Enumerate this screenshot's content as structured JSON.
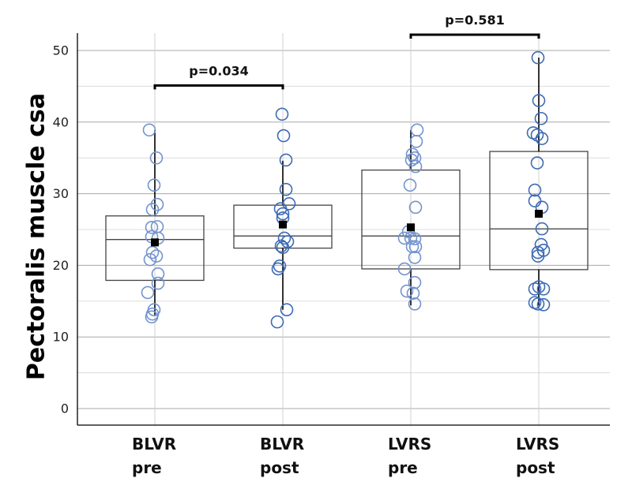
{
  "chart_data": {
    "type": "box",
    "title": "",
    "xlabel": "",
    "ylabel": "Pectoralis muscle csa",
    "ylim": [
      -2.5,
      52.5
    ],
    "yticks": [
      0,
      10,
      20,
      30,
      40,
      50
    ],
    "grid": true,
    "categories": [
      {
        "line1": "BLVR",
        "line2": "pre"
      },
      {
        "line1": "BLVR",
        "line2": "post"
      },
      {
        "line1": "LVRS",
        "line2": "pre"
      },
      {
        "line1": "LVRS",
        "line2": "post"
      }
    ],
    "groups": [
      {
        "name": "BLVR pre",
        "q1": 17.9,
        "median": 23.6,
        "q3": 26.9,
        "mean": 23.2,
        "whisker_low": 13.0,
        "whisker_high": 38.9,
        "point_color": "#7393cf",
        "points": [
          38.9,
          35.0,
          31.2,
          28.5,
          27.8,
          25.3,
          25.4,
          24.0,
          23.8,
          21.8,
          21.3,
          20.8,
          18.8,
          17.5,
          16.2,
          13.8,
          13.2,
          12.8
        ]
      },
      {
        "name": "BLVR post",
        "q1": 22.4,
        "median": 24.1,
        "q3": 28.4,
        "mean": 25.7,
        "whisker_low": 13.8,
        "whisker_high": 34.6,
        "point_color": "#3d6ab5",
        "points": [
          41.1,
          38.1,
          34.7,
          30.6,
          28.6,
          27.9,
          27.2,
          26.6,
          23.8,
          23.3,
          22.5,
          22.7,
          19.9,
          19.5,
          13.8,
          12.1
        ]
      },
      {
        "name": "LVRS pre",
        "q1": 19.5,
        "median": 24.1,
        "q3": 33.3,
        "mean": 25.3,
        "whisker_low": 14.4,
        "whisker_high": 38.9,
        "point_color": "#7393cf",
        "points": [
          38.9,
          37.3,
          35.5,
          35.0,
          34.7,
          33.8,
          31.2,
          28.1,
          24.7,
          23.8,
          23.8,
          23.7,
          22.6,
          22.6,
          21.1,
          19.5,
          17.6,
          16.4,
          16.1,
          14.6
        ]
      },
      {
        "name": "LVRS post",
        "q1": 19.4,
        "median": 25.1,
        "q3": 35.9,
        "mean": 27.2,
        "whisker_low": 14.4,
        "whisker_high": 49.0,
        "point_color": "#3d6ab5",
        "points": [
          49.0,
          43.0,
          40.5,
          38.5,
          38.2,
          37.7,
          34.3,
          30.5,
          29.0,
          28.1,
          25.1,
          22.9,
          22.1,
          21.8,
          21.3,
          17.0,
          16.7,
          16.7,
          14.8,
          14.6,
          14.5
        ]
      }
    ],
    "point_offsets": [
      [
        -7,
        2,
        -1,
        3,
        -3,
        -4,
        3,
        -4,
        4,
        -3,
        2,
        -6,
        4,
        4,
        -9,
        -1,
        -3,
        -4
      ],
      [
        -1,
        1,
        4,
        4,
        8,
        -3,
        0,
        0,
        2,
        6,
        0,
        -2,
        -4,
        -6,
        5,
        -7
      ],
      [
        8,
        7,
        2,
        5,
        1,
        6,
        -1,
        6,
        -3,
        0,
        -8,
        5,
        2,
        6,
        5,
        -8,
        5,
        -5,
        3,
        5
      ],
      [
        -1,
        0,
        3,
        -7,
        -2,
        4,
        -2,
        -5,
        -5,
        4,
        4,
        3,
        6,
        -1,
        -1,
        0,
        6,
        -5,
        -5,
        -1,
        6
      ]
    ],
    "mean_marker_color": "#000000",
    "annotations": [
      {
        "text": "p=0.034",
        "from": 0,
        "to": 1,
        "height": 45.0
      },
      {
        "text": "p=0.581",
        "from": 2,
        "to": 3,
        "height": 52.1
      }
    ]
  }
}
